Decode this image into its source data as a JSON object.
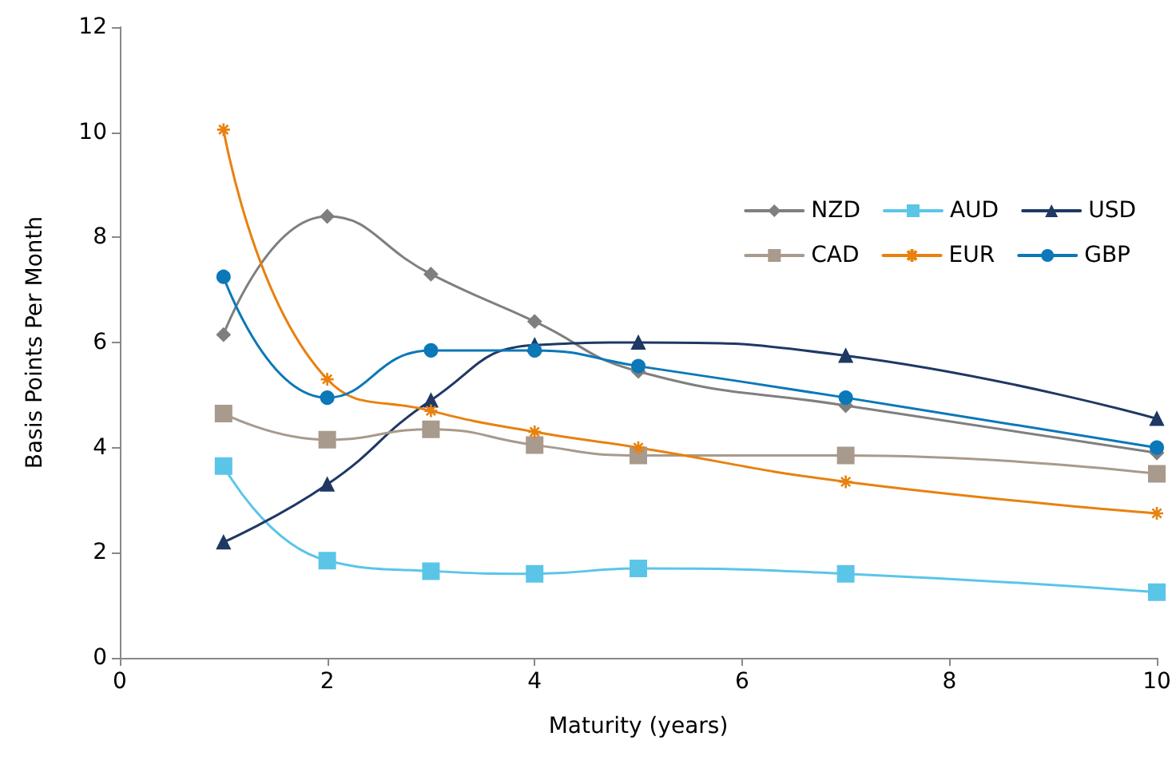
{
  "chart_data": {
    "type": "line",
    "xlabel": "Maturity (years)",
    "ylabel": "Basis Points Per Month",
    "x": [
      1,
      2,
      3,
      4,
      5,
      7,
      10
    ],
    "xlim": [
      0,
      10
    ],
    "xticks": [
      0,
      2,
      4,
      6,
      8,
      10
    ],
    "ylim": [
      0,
      12
    ],
    "yticks": [
      0,
      2,
      4,
      6,
      8,
      10,
      12
    ],
    "grid": false,
    "legend": "top right",
    "series": [
      {
        "name": "NZD",
        "color": "#7f7f7f",
        "marker": "diamond",
        "values": [
          6.15,
          8.4,
          7.3,
          6.4,
          5.45,
          4.8,
          3.9
        ]
      },
      {
        "name": "AUD",
        "color": "#5bc5e8",
        "marker": "square",
        "values": [
          3.65,
          1.85,
          1.65,
          1.6,
          1.7,
          1.6,
          1.25
        ]
      },
      {
        "name": "USD",
        "color": "#1f3864",
        "marker": "triangle",
        "values": [
          2.2,
          3.3,
          4.9,
          5.95,
          6.0,
          5.75,
          4.55
        ]
      },
      {
        "name": "CAD",
        "color": "#a89a8c",
        "marker": "square",
        "values": [
          4.65,
          4.15,
          4.35,
          4.05,
          3.85,
          3.85,
          3.5
        ]
      },
      {
        "name": "EUR",
        "color": "#e8810f",
        "marker": "cross",
        "values": [
          10.05,
          5.3,
          4.7,
          4.3,
          4.0,
          3.35,
          2.75
        ]
      },
      {
        "name": "GBP",
        "color": "#0b78b8",
        "marker": "circle",
        "values": [
          7.25,
          4.95,
          5.85,
          5.85,
          5.55,
          4.95,
          4.0
        ]
      }
    ]
  }
}
